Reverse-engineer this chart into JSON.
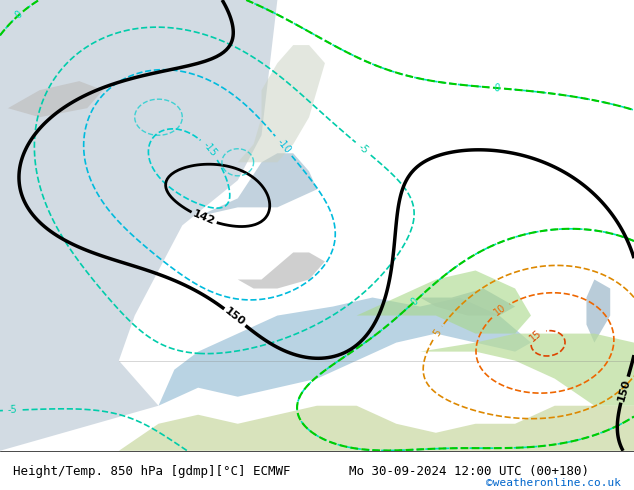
{
  "title_left": "Height/Temp. 850 hPa [gdmp][°C] ECMWF",
  "title_right": "Mo 30-09-2024 12:00 UTC (00+180)",
  "credit": "©weatheronline.co.uk",
  "bg_color": "#e8f4e8",
  "fig_width": 6.34,
  "fig_height": 4.9,
  "dpi": 100,
  "caption_fontsize": 9,
  "credit_fontsize": 8,
  "credit_color": "#0066cc"
}
